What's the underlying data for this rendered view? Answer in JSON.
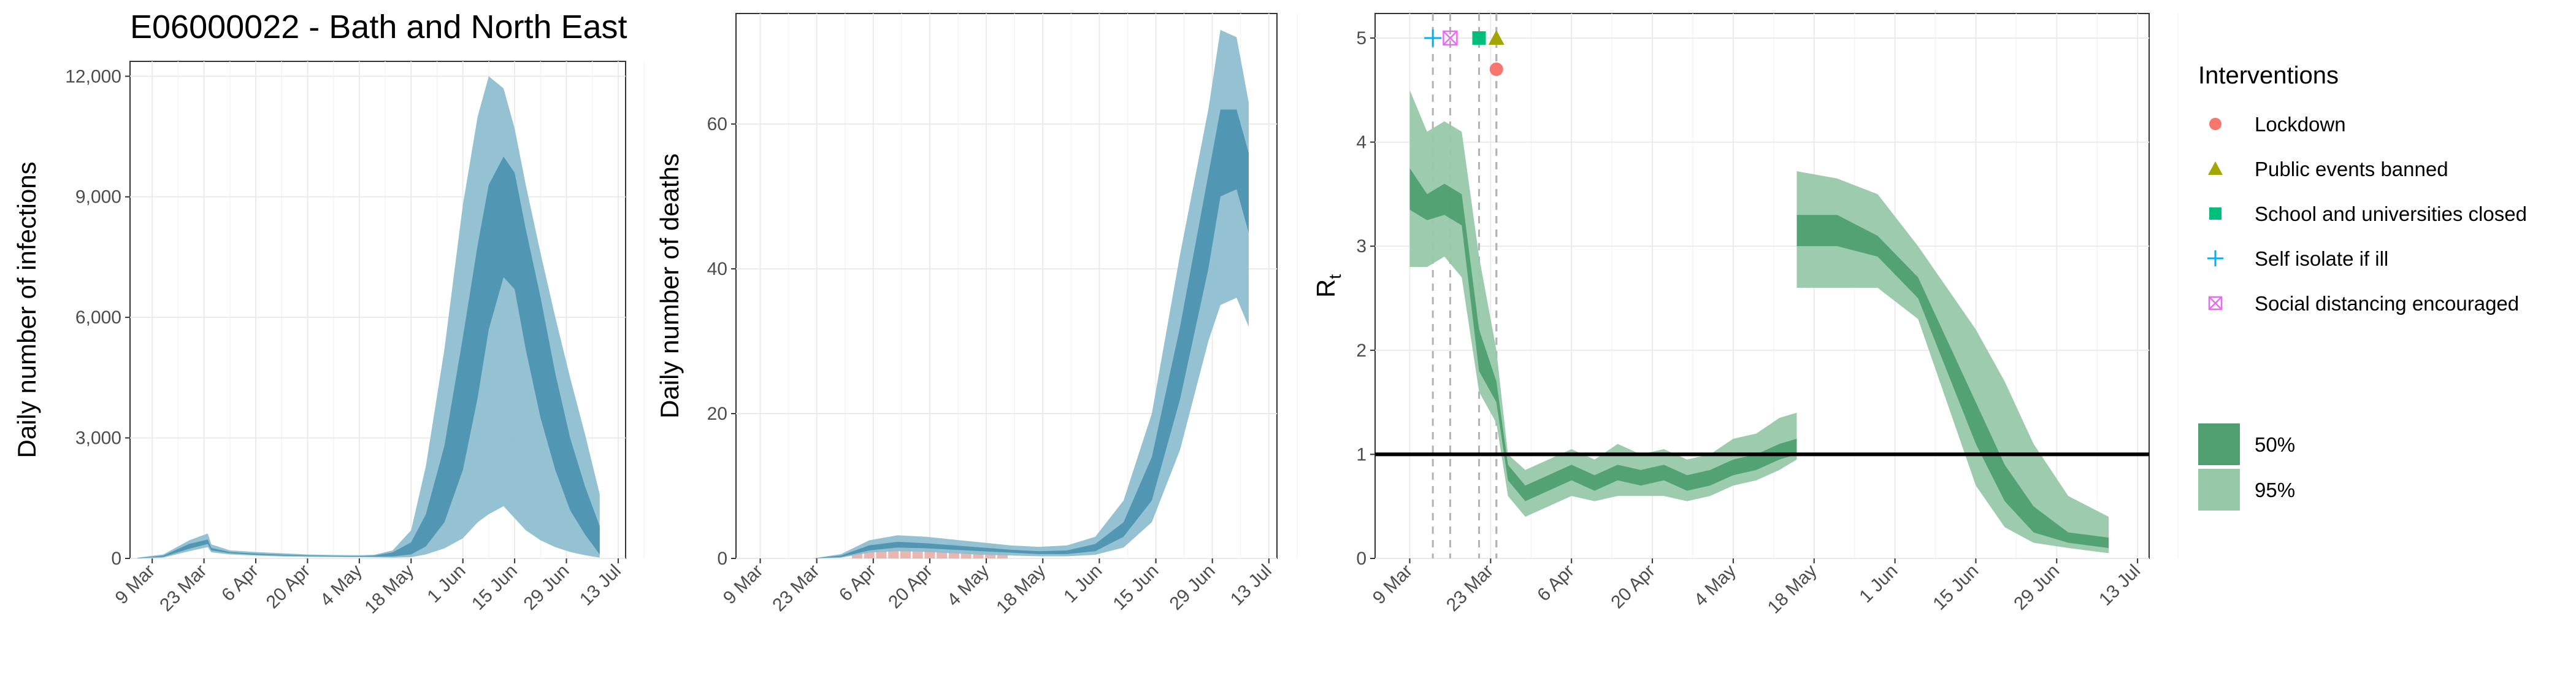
{
  "title": "E06000022 - Bath and North East",
  "colors": {
    "infections_ci95": "#8fbfd0",
    "infections_ci50": "#4d93b0",
    "rt_ci95": "#97c9a9",
    "rt_ci50": "#4f9f70",
    "deaths_bars": "#e9a9a2",
    "grid": "#ebebeb",
    "lockdown": "#f8766d",
    "public_events": "#a3a500",
    "schools": "#00bf7d",
    "self_isolate": "#00b0f6",
    "social_distancing": "#e76bf3"
  },
  "x_date_ticks": [
    "9 Mar",
    "23 Mar",
    "6 Apr",
    "20 Apr",
    "4 May",
    "18 May",
    "1 Jun",
    "15 Jun",
    "29 Jun",
    "13 Jul"
  ],
  "interventions": {
    "title": "Interventions",
    "items": [
      {
        "label": "Lockdown",
        "icon": "circle-marker",
        "date": "2020-03-24",
        "y": 4.7
      },
      {
        "label": "Public events banned",
        "icon": "triangle-marker",
        "date": "2020-03-24",
        "y": 5.0
      },
      {
        "label": "School and universities closed",
        "icon": "square-marker",
        "date": "2020-03-21",
        "y": 5.0
      },
      {
        "label": "Self isolate if ill",
        "icon": "plus-marker",
        "date": "2020-03-13",
        "y": 5.0
      },
      {
        "label": "Social distancing encouraged",
        "icon": "boxed-x-marker",
        "date": "2020-03-16",
        "y": 5.0
      }
    ]
  },
  "ci_legend": [
    {
      "label": "50%"
    },
    {
      "label": "95%"
    }
  ],
  "chart_data": [
    {
      "type": "area",
      "ylabel": "Daily number of infections",
      "ylim": [
        0,
        12000
      ],
      "yticks": [
        "0",
        "3,000",
        "6,000",
        "9,000",
        "12,000"
      ],
      "x": [
        "2020-03-05",
        "2020-03-12",
        "2020-03-19",
        "2020-03-24",
        "2020-03-25",
        "2020-03-30",
        "2020-04-06",
        "2020-04-13",
        "2020-04-20",
        "2020-04-27",
        "2020-05-04",
        "2020-05-08",
        "2020-05-13",
        "2020-05-18",
        "2020-05-22",
        "2020-05-27",
        "2020-06-01",
        "2020-06-05",
        "2020-06-08",
        "2020-06-12",
        "2020-06-15",
        "2020-06-18",
        "2020-06-22",
        "2020-06-26",
        "2020-06-30",
        "2020-07-04",
        "2020-07-08"
      ],
      "series": [
        {
          "band": "95%",
          "upper": [
            20,
            100,
            450,
            620,
            350,
            200,
            160,
            130,
            100,
            85,
            80,
            90,
            200,
            700,
            2300,
            5200,
            8800,
            11000,
            12000,
            11700,
            10700,
            9300,
            7600,
            6000,
            4500,
            3100,
            1600
          ],
          "lower": [
            0,
            20,
            180,
            280,
            150,
            100,
            70,
            50,
            40,
            35,
            30,
            25,
            20,
            30,
            100,
            250,
            500,
            900,
            1100,
            1300,
            1000,
            700,
            450,
            280,
            160,
            80,
            20
          ]
        },
        {
          "band": "50%",
          "upper": [
            10,
            70,
            360,
            470,
            260,
            160,
            120,
            95,
            75,
            65,
            60,
            70,
            150,
            400,
            1100,
            2800,
            5500,
            7800,
            9300,
            10000,
            9600,
            8200,
            6500,
            4600,
            3000,
            1800,
            800
          ],
          "lower": [
            5,
            40,
            240,
            360,
            200,
            130,
            90,
            70,
            55,
            50,
            45,
            45,
            50,
            100,
            300,
            900,
            2200,
            4000,
            5700,
            7000,
            6700,
            5200,
            3500,
            2200,
            1200,
            600,
            100
          ]
        }
      ]
    },
    {
      "type": "area",
      "ylabel": "Daily number of deaths",
      "ylim": [
        0,
        70
      ],
      "yticks": [
        "0",
        "20",
        "40",
        "60"
      ],
      "x": [
        "2020-03-22",
        "2020-03-29",
        "2020-04-05",
        "2020-04-12",
        "2020-04-19",
        "2020-04-26",
        "2020-05-03",
        "2020-05-10",
        "2020-05-17",
        "2020-05-24",
        "2020-05-31",
        "2020-06-07",
        "2020-06-14",
        "2020-06-21",
        "2020-06-28",
        "2020-07-01",
        "2020-07-05",
        "2020-07-08"
      ],
      "series": [
        {
          "band": "95%",
          "upper": [
            0,
            0.6,
            2.5,
            3.2,
            3.0,
            2.6,
            2.2,
            1.8,
            1.6,
            1.8,
            3,
            8,
            20,
            42,
            62,
            73,
            72,
            63
          ],
          "lower": [
            0,
            0.1,
            0.8,
            1.0,
            0.9,
            0.7,
            0.5,
            0.4,
            0.3,
            0.3,
            0.5,
            1.5,
            5,
            15,
            30,
            35,
            36,
            32
          ]
        },
        {
          "band": "50%",
          "upper": [
            0,
            0.4,
            1.8,
            2.3,
            2.1,
            1.8,
            1.5,
            1.2,
            1.0,
            1.1,
            2,
            5,
            14,
            32,
            53,
            62,
            62,
            56
          ],
          "lower": [
            0,
            0.2,
            1.1,
            1.5,
            1.4,
            1.2,
            1.0,
            0.8,
            0.6,
            0.6,
            1,
            3,
            8,
            22,
            40,
            50,
            51,
            45
          ]
        }
      ],
      "observed_deaths": {
        "x": [
          "2020-04-02",
          "2020-04-05",
          "2020-04-08",
          "2020-04-11",
          "2020-04-14",
          "2020-04-17",
          "2020-04-20",
          "2020-04-23",
          "2020-04-26",
          "2020-04-29",
          "2020-05-02",
          "2020-05-05",
          "2020-05-08"
        ],
        "values": [
          1,
          2,
          1,
          2,
          2,
          1,
          2,
          1,
          2,
          1,
          1,
          2,
          1
        ]
      }
    },
    {
      "type": "area",
      "ylabel": "R",
      "ylabel_subscript": "t",
      "ylim": [
        0,
        5
      ],
      "yticks": [
        "0",
        "1",
        "2",
        "3",
        "4",
        "5"
      ],
      "reference_line": 1,
      "x": [
        "2020-03-09",
        "2020-03-12",
        "2020-03-15",
        "2020-03-18",
        "2020-03-21",
        "2020-03-24",
        "2020-03-26",
        "2020-03-29",
        "2020-04-02",
        "2020-04-06",
        "2020-04-10",
        "2020-04-14",
        "2020-04-18",
        "2020-04-22",
        "2020-04-26",
        "2020-04-30",
        "2020-05-04",
        "2020-05-08",
        "2020-05-12",
        "2020-05-15",
        "2020-05-15",
        "2020-05-22",
        "2020-05-29",
        "2020-06-05",
        "2020-06-10",
        "2020-06-15",
        "2020-06-20",
        "2020-06-25",
        "2020-07-01",
        "2020-07-08"
      ],
      "series": [
        {
          "band": "95%",
          "upper": [
            4.5,
            4.1,
            4.2,
            4.1,
            2.9,
            2.0,
            1.0,
            0.85,
            0.95,
            1.05,
            0.95,
            1.1,
            1.0,
            1.05,
            0.95,
            1.0,
            1.15,
            1.2,
            1.35,
            1.4,
            3.72,
            3.65,
            3.5,
            3.0,
            2.6,
            2.2,
            1.7,
            1.1,
            0.6,
            0.4
          ],
          "lower": [
            2.8,
            2.8,
            2.9,
            2.7,
            1.6,
            1.3,
            0.6,
            0.4,
            0.5,
            0.6,
            0.55,
            0.6,
            0.6,
            0.6,
            0.55,
            0.6,
            0.7,
            0.75,
            0.85,
            0.95,
            2.6,
            2.6,
            2.6,
            2.3,
            1.5,
            0.7,
            0.3,
            0.15,
            0.1,
            0.05
          ]
        },
        {
          "band": "50%",
          "upper": [
            3.75,
            3.5,
            3.6,
            3.5,
            2.2,
            1.7,
            0.9,
            0.7,
            0.8,
            0.9,
            0.8,
            0.9,
            0.85,
            0.9,
            0.8,
            0.85,
            0.95,
            1.0,
            1.1,
            1.15,
            3.3,
            3.3,
            3.1,
            2.7,
            2.1,
            1.5,
            0.9,
            0.5,
            0.25,
            0.2
          ],
          "lower": [
            3.35,
            3.25,
            3.3,
            3.2,
            1.8,
            1.5,
            0.75,
            0.55,
            0.65,
            0.75,
            0.65,
            0.75,
            0.7,
            0.75,
            0.65,
            0.7,
            0.8,
            0.85,
            0.95,
            1.0,
            3.0,
            3.0,
            2.9,
            2.5,
            1.8,
            1.1,
            0.55,
            0.25,
            0.15,
            0.1
          ]
        }
      ]
    }
  ]
}
